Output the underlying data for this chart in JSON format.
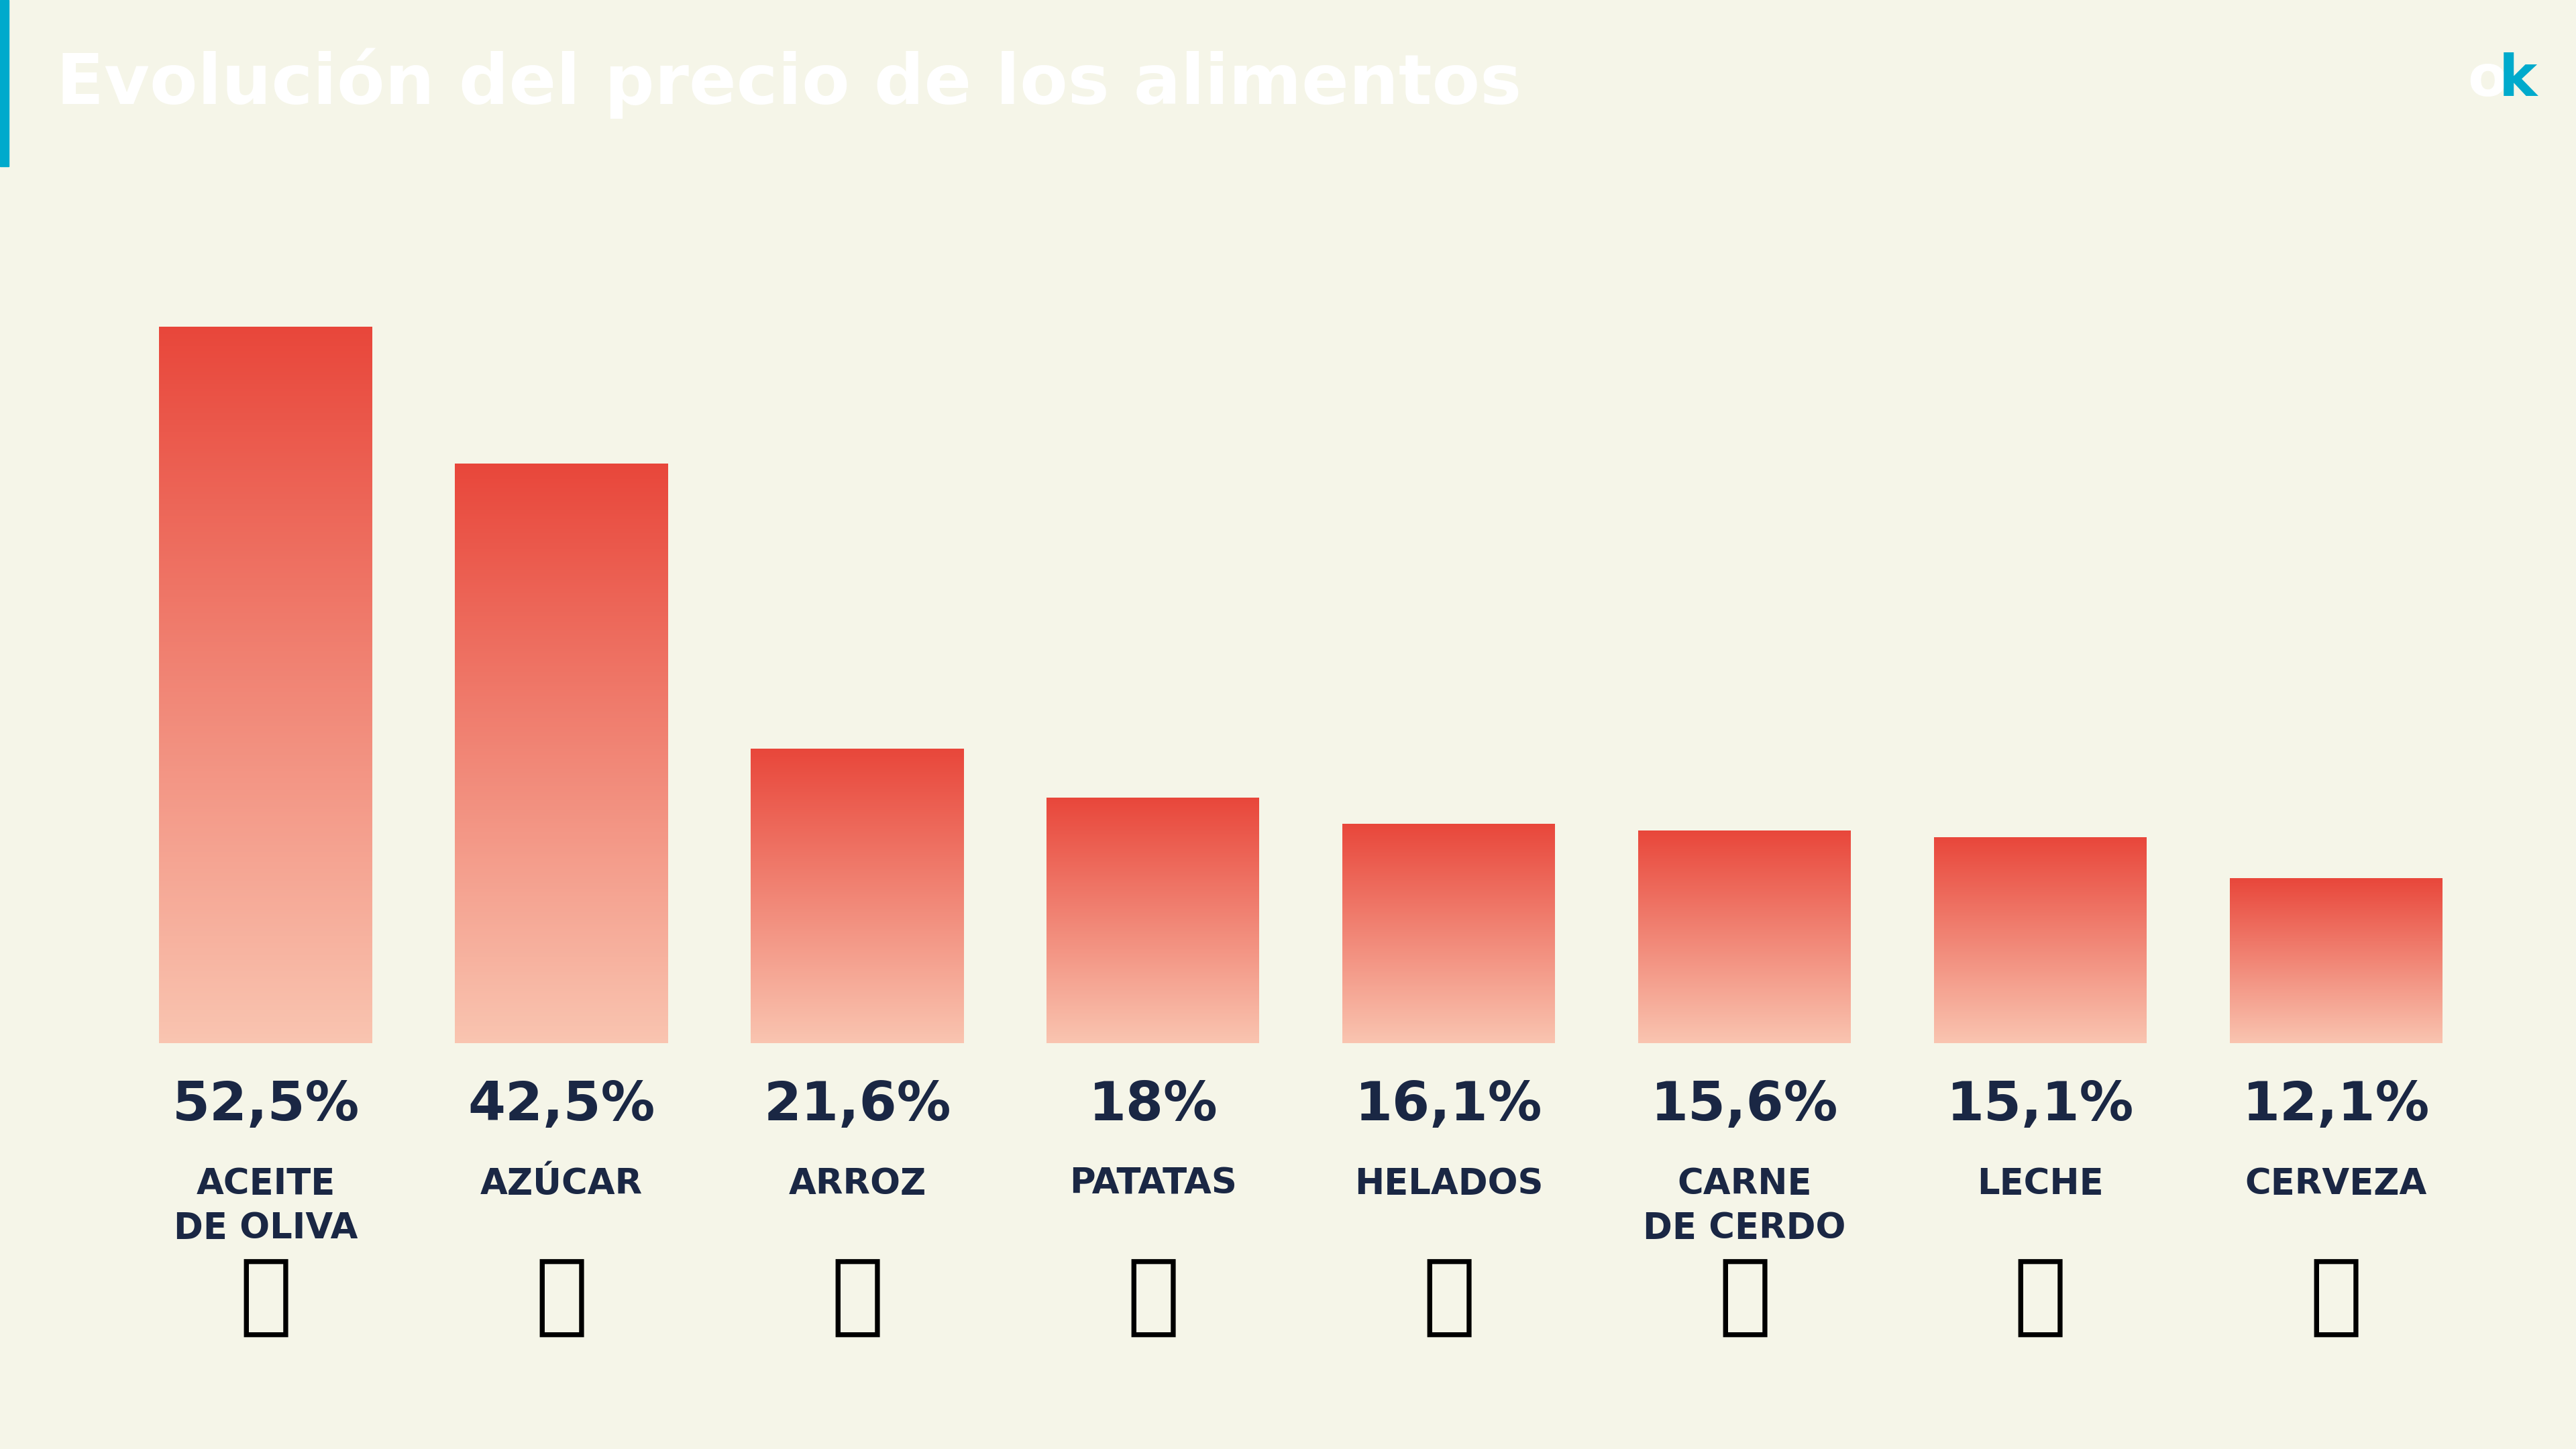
{
  "title": "Evolución del precio de los alimentos",
  "title_bg_color": "#1a2744",
  "title_text_color": "#ffffff",
  "bg_color": "#f5f5e8",
  "categories_line1": [
    "ACEITE",
    "AZÚCAR",
    "ARROZ",
    "PATATAS",
    "HELADOS",
    "CARNE",
    "LECHE",
    "CERVEZA"
  ],
  "categories_line2": [
    "DE OLIVA",
    "",
    "",
    "",
    "",
    "DE CERDO",
    "",
    ""
  ],
  "values": [
    52.5,
    42.5,
    21.6,
    18.0,
    16.1,
    15.6,
    15.1,
    12.1
  ],
  "value_labels": [
    "52,5%",
    "42,5%",
    "21,6%",
    "18%",
    "16,1%",
    "15,6%",
    "15,1%",
    "12,1%"
  ],
  "bar_top_color": "#e8463a",
  "bar_bottom_color": "#f9c4b0",
  "label_color": "#1a2744",
  "ylim_max": 60,
  "accent_color": "#00aacc"
}
